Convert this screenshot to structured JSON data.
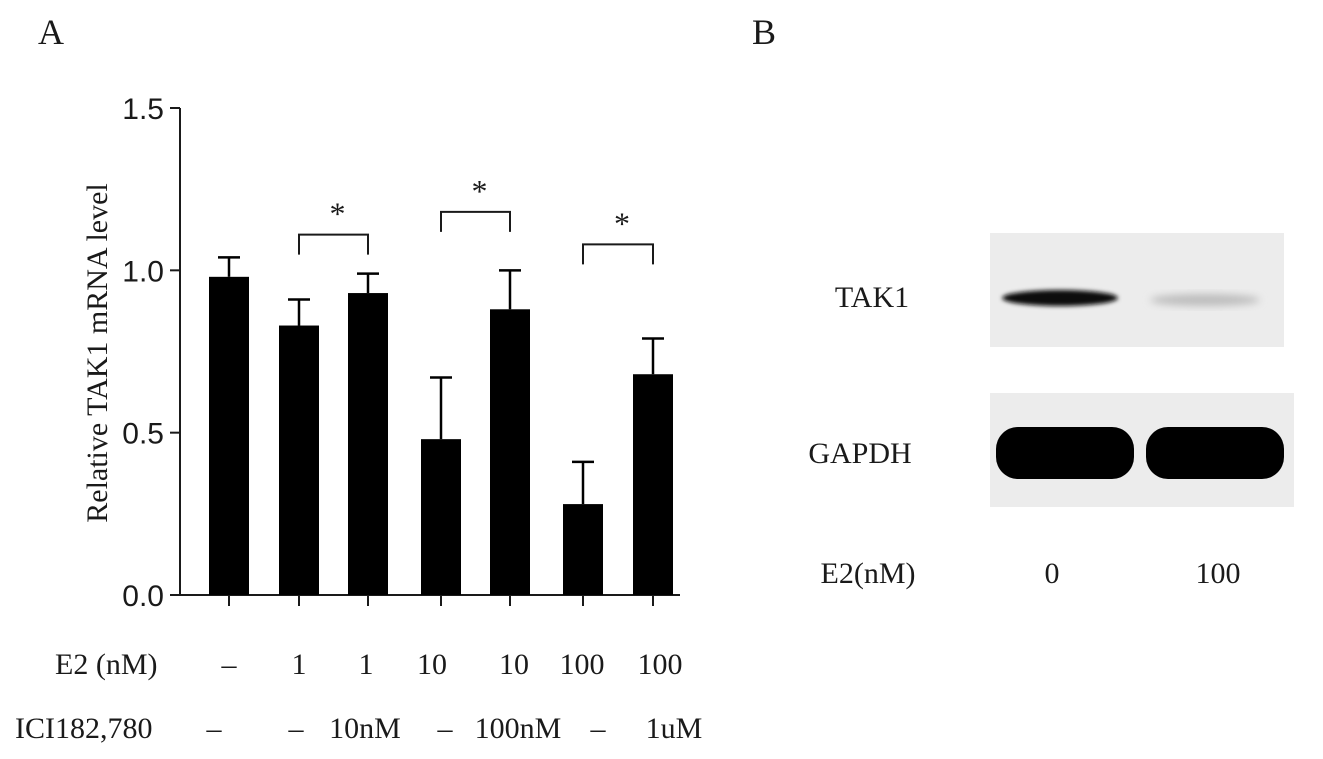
{
  "panels": {
    "a_label": "A",
    "b_label": "B"
  },
  "chart_data": {
    "type": "bar",
    "title": "",
    "xlabel": "",
    "ylabel": "Relative TAK1 mRNA level",
    "ylim": [
      0,
      1.5
    ],
    "yticks": [
      "0.0",
      "0.5",
      "1.0",
      "1.5"
    ],
    "ytick_values": [
      0,
      0.5,
      1.0,
      1.5
    ],
    "grid": false,
    "values": [
      0.98,
      0.83,
      0.93,
      0.48,
      0.88,
      0.28,
      0.68
    ],
    "errors": [
      0.06,
      0.08,
      0.06,
      0.19,
      0.12,
      0.13,
      0.11
    ],
    "bar_color": "#000000",
    "significance": [
      {
        "from": 1,
        "to": 2,
        "label": "*",
        "y": 1.11
      },
      {
        "from": 3,
        "to": 4,
        "label": "*",
        "y": 1.18
      },
      {
        "from": 5,
        "to": 6,
        "label": "*",
        "y": 1.08
      }
    ],
    "conditions": {
      "e2_label": "E2 (nM)",
      "e2_values": [
        "–",
        "1",
        "1",
        "10",
        "10",
        "100",
        "100"
      ],
      "ici_label": "ICI182,780",
      "ici_values": [
        "–",
        "–",
        "10nM",
        "–",
        "100nM",
        "–",
        "1uM"
      ]
    }
  },
  "blot": {
    "rows": [
      {
        "label": "TAK1"
      },
      {
        "label": "GAPDH"
      }
    ],
    "treatment_label": "E2(nM)",
    "lanes": [
      "0",
      "100"
    ]
  }
}
